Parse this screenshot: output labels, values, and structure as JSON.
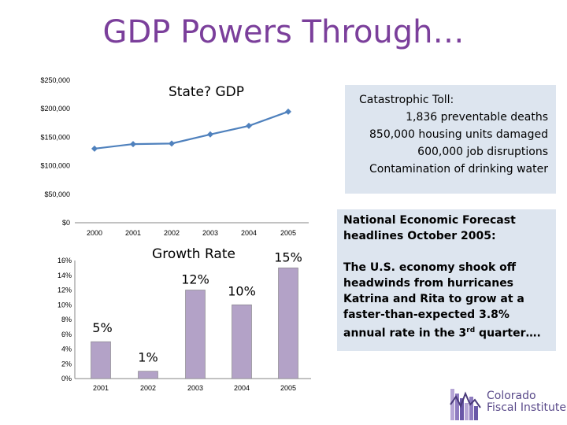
{
  "slide": {
    "title": "GDP Powers Through…"
  },
  "chart_data": [
    {
      "type": "line",
      "title": "State? GDP",
      "x": [
        "2000",
        "2001",
        "2002",
        "2003",
        "2004",
        "2005"
      ],
      "series": [
        {
          "values": [
            130000,
            138000,
            139000,
            155000,
            170000,
            195000
          ]
        }
      ],
      "ylim": [
        0,
        250000
      ],
      "yticks": [
        "$0",
        "$50,000",
        "$100,000",
        "$150,000",
        "$200,000",
        "$250,000"
      ],
      "grid": false,
      "color": "#4f81bd"
    },
    {
      "type": "bar",
      "title": "Growth Rate",
      "categories": [
        "2001",
        "2002",
        "2003",
        "2004",
        "2005"
      ],
      "values": [
        5,
        1,
        12,
        10,
        15
      ],
      "data_labels": [
        "5%",
        "1%",
        "12%",
        "10%",
        "15%"
      ],
      "ylim": [
        0,
        16
      ],
      "yticks": [
        "0%",
        "2%",
        "4%",
        "6%",
        "8%",
        "10%",
        "12%",
        "14%",
        "16%"
      ],
      "grid": false,
      "color": "#b3a2c7"
    }
  ],
  "info_box": {
    "lines": [
      "Catastrophic Toll:",
      "1,836 preventable deaths",
      "850,000 housing units damaged",
      "600,000 job disruptions",
      "Contamination of drinking water"
    ]
  },
  "forecast_box": {
    "heading": "National Economic Forecast headlines October 2005:",
    "body_pre": "The U.S. economy shook off headwinds from hurricanes Katrina and Rita to grow at a faster-than-expected 3.8% annual rate in the 3",
    "body_sup": "rd",
    "body_post": " quarter…."
  },
  "logo": {
    "line1": "Colorado",
    "line2": "Fiscal Institute",
    "color": "#5a4a8a"
  }
}
